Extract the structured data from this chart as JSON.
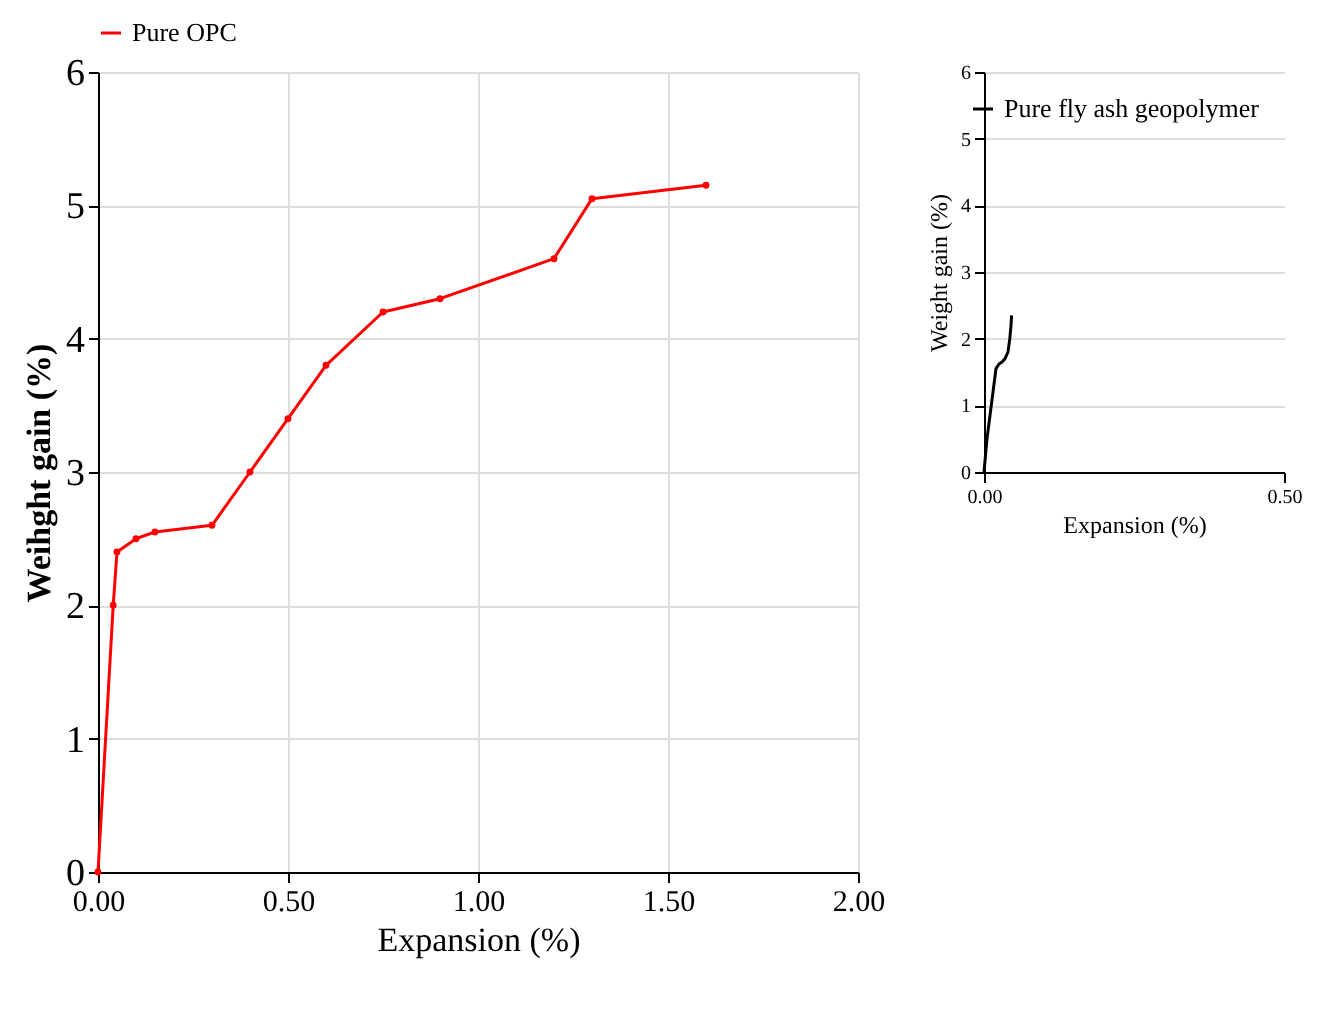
{
  "chart_data": [
    {
      "type": "line",
      "xlabel": "Expansion (%)",
      "ylabel": "Weihght gain (%)",
      "x": [
        0,
        0.04,
        0.05,
        0.1,
        0.15,
        0.3,
        0.4,
        0.5,
        0.6,
        0.75,
        0.9,
        1.2,
        1.3,
        1.6
      ],
      "series": [
        {
          "name": "Pure OPC",
          "color": "#ff0000",
          "values": [
            0,
            2.0,
            2.4,
            2.5,
            2.55,
            2.6,
            3.0,
            3.4,
            3.8,
            4.2,
            4.3,
            4.6,
            5.05,
            5.15
          ]
        }
      ],
      "xlim": [
        0,
        2
      ],
      "xticks": [
        {
          "value": 0,
          "label": "0.00"
        },
        {
          "value": 0.5,
          "label": "0.50"
        },
        {
          "value": 1,
          "label": "1.00"
        },
        {
          "value": 1.5,
          "label": "1.50"
        },
        {
          "value": 2,
          "label": "2.00"
        }
      ],
      "ylim": [
        0,
        6
      ],
      "yticks": [
        0,
        1,
        2,
        3,
        4,
        5,
        6
      ],
      "grid": true,
      "legend": "top",
      "marker": "circle",
      "line_style": "solid"
    },
    {
      "type": "line",
      "xlabel": "Expansion (%)",
      "ylabel": "Weight gain (%)",
      "x": [
        0,
        0.005,
        0.015,
        0.02,
        0.025,
        0.03,
        0.035,
        0.04,
        0.043,
        0.045,
        0.046
      ],
      "series": [
        {
          "name": "Pure fly ash geopolymer",
          "color": "#000000",
          "values": [
            0,
            0.5,
            1.2,
            1.55,
            1.62,
            1.65,
            1.7,
            1.8,
            2.0,
            2.2,
            2.35
          ]
        }
      ],
      "xlim": [
        0,
        0.5
      ],
      "xticks": [
        {
          "value": 0,
          "label": "0.00"
        },
        {
          "value": 0.5,
          "label": "0.50"
        }
      ],
      "ylim": [
        0,
        6
      ],
      "yticks": [
        0,
        1,
        2,
        3,
        4,
        5,
        6
      ],
      "grid": "y",
      "legend": "top right",
      "marker": "none",
      "line_style": "solid"
    }
  ]
}
